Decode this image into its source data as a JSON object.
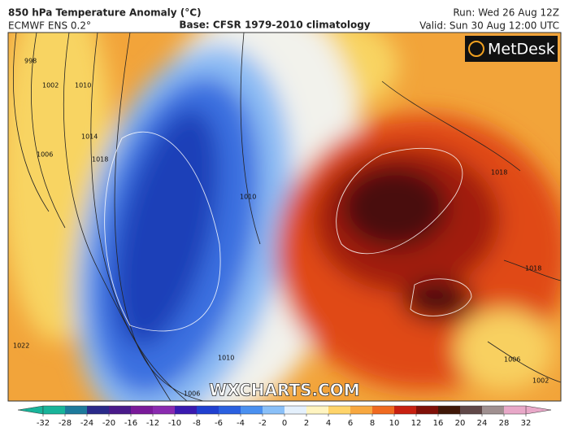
{
  "header": {
    "title": "850 hPa Temperature Anomaly (°C)",
    "model": "ECMWF ENS 0.2°",
    "base": "Base: CFSR 1979-2010 climatology",
    "run": "Run: Wed 26 Aug 12Z",
    "valid": "Valid: Sun 30 Aug 12:00 UTC"
  },
  "logo": "MetDesk",
  "watermark": "WXCHARTS.COM",
  "isobar_labels": [
    998,
    1002,
    1010,
    1014,
    1018,
    1006,
    1022,
    1010,
    1018,
    1018,
    1006,
    1002,
    1010,
    1006
  ],
  "colorbar": {
    "ticks": [
      -32,
      -28,
      -24,
      -20,
      -16,
      -12,
      -10,
      -8,
      -6,
      -4,
      -2,
      0,
      2,
      4,
      6,
      8,
      10,
      12,
      16,
      20,
      24,
      28,
      32
    ],
    "colors": [
      "#18b49a",
      "#1d7a9c",
      "#2a2a8a",
      "#4a1a8a",
      "#7a1a9a",
      "#8a2ab0",
      "#3a1ab0",
      "#2040d0",
      "#2a60e0",
      "#4a90f0",
      "#8ac0f8",
      "#e4f0fc",
      "#fff4c0",
      "#ffd46a",
      "#f8a840",
      "#f06a20",
      "#c82010",
      "#801008",
      "#401808",
      "#604848",
      "#a09090",
      "#e8a8c8"
    ]
  }
}
